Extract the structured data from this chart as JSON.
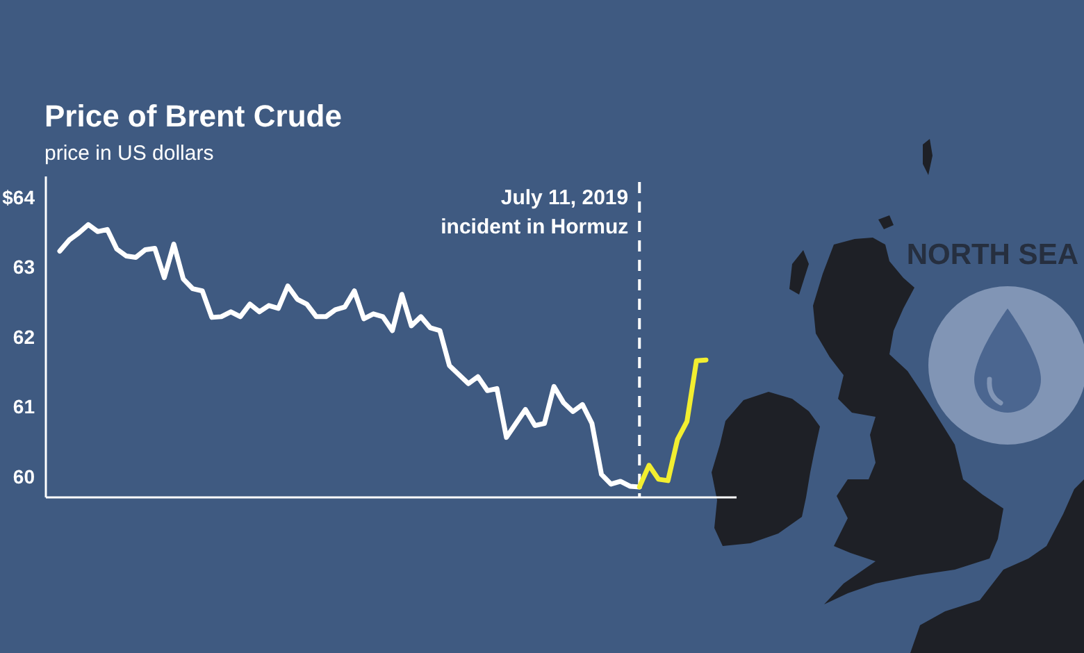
{
  "chart_data": {
    "type": "line",
    "title": "Price of Brent Crude",
    "subtitle": "price in US dollars",
    "categories": [
      null,
      null,
      null,
      null,
      null,
      null,
      null,
      null,
      null,
      null,
      null,
      null,
      null,
      null,
      null,
      null,
      null,
      null,
      null,
      null,
      null,
      null,
      null,
      null,
      null,
      null,
      null,
      null,
      null,
      null,
      null,
      null,
      null,
      null,
      null,
      null,
      null,
      null,
      null,
      null,
      null,
      null,
      null,
      null,
      null,
      null,
      null,
      null,
      null,
      null,
      null,
      null,
      null,
      null,
      null,
      null,
      null,
      null,
      null,
      null,
      null,
      null,
      null,
      null,
      null,
      null,
      null,
      null,
      null
    ],
    "series": [
      {
        "color": "#ffffff",
        "values": [
          63.23,
          63.39,
          63.49,
          63.61,
          63.51,
          63.54,
          63.26,
          63.16,
          63.14,
          63.25,
          63.27,
          62.85,
          63.33,
          62.83,
          62.69,
          62.66,
          62.28,
          62.29,
          62.36,
          62.29,
          62.47,
          62.36,
          62.45,
          62.41,
          62.73,
          62.54,
          62.47,
          62.29,
          62.29,
          62.39,
          62.43,
          62.66,
          62.26,
          62.33,
          62.29,
          62.09,
          62.61,
          62.16,
          62.29,
          62.13,
          62.09,
          61.59,
          61.46,
          61.33,
          61.43,
          61.23,
          61.26,
          60.56,
          60.76,
          60.96,
          60.73,
          60.76,
          61.29,
          61.06,
          60.93,
          61.03,
          60.76,
          60.03,
          59.89,
          59.93,
          59.86,
          59.85,
          null,
          null,
          null,
          null,
          null,
          null,
          null
        ]
      },
      {
        "color": "#f2ee30",
        "values": [
          null,
          null,
          null,
          null,
          null,
          null,
          null,
          null,
          null,
          null,
          null,
          null,
          null,
          null,
          null,
          null,
          null,
          null,
          null,
          null,
          null,
          null,
          null,
          null,
          null,
          null,
          null,
          null,
          null,
          null,
          null,
          null,
          null,
          null,
          null,
          null,
          null,
          null,
          null,
          null,
          null,
          null,
          null,
          null,
          null,
          null,
          null,
          null,
          null,
          null,
          null,
          null,
          null,
          null,
          null,
          null,
          null,
          null,
          null,
          null,
          null,
          59.85,
          60.16,
          59.96,
          59.94,
          60.53,
          60.79,
          61.66,
          61.67
        ]
      }
    ],
    "ylim": [
      59.7,
      64.3
    ],
    "yticks": [
      60,
      61,
      62,
      63,
      {
        "value": 64,
        "label": "$64"
      }
    ],
    "tick_labels": "y",
    "annotations": [
      "July 11, 2019\nincident in Hormuz",
      "NORTH SEA"
    ]
  }
}
